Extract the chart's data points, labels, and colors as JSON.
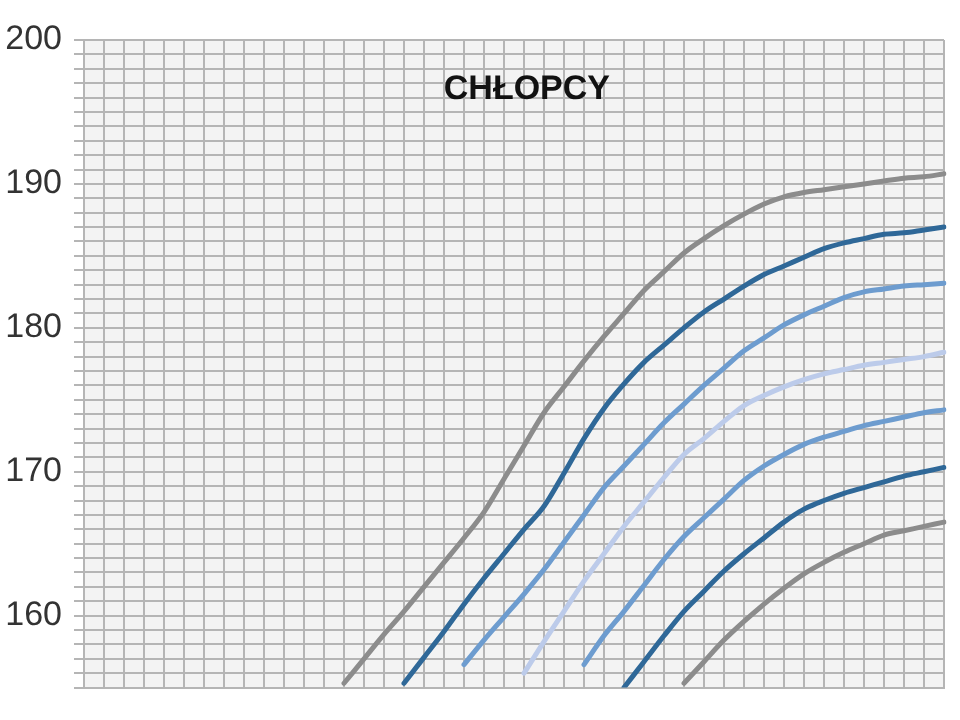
{
  "chart_data": {
    "type": "line",
    "title": "CHŁOPCY",
    "categories": [
      null,
      null,
      null,
      null,
      null,
      null,
      null,
      null,
      null,
      null,
      null,
      null,
      null,
      null,
      null,
      null,
      null,
      null,
      null,
      null,
      null,
      null,
      null,
      null,
      null,
      null,
      null,
      null,
      null,
      null,
      null,
      null,
      null,
      null,
      null,
      null,
      null,
      null,
      null,
      null,
      null,
      null,
      null,
      null
    ],
    "series": [
      {
        "color": "#8c8c8c",
        "values": [
          null,
          null,
          null,
          null,
          null,
          null,
          null,
          null,
          null,
          null,
          null,
          null,
          null,
          155.3,
          157.0,
          158.7,
          160.3,
          162.0,
          163.7,
          165.4,
          167.2,
          169.5,
          171.8,
          174.1,
          175.9,
          177.7,
          179.4,
          181.0,
          182.6,
          183.9,
          185.2,
          186.2,
          187.1,
          187.9,
          188.6,
          189.1,
          189.4,
          189.6,
          189.8,
          190.0,
          190.2,
          190.4,
          190.5,
          190.7
        ]
      },
      {
        "color": "#2f6898",
        "values": [
          null,
          null,
          null,
          null,
          null,
          null,
          null,
          null,
          null,
          null,
          null,
          null,
          null,
          null,
          null,
          null,
          155.3,
          157.1,
          158.9,
          160.8,
          162.6,
          164.3,
          166.0,
          167.6,
          169.9,
          172.3,
          174.4,
          176.1,
          177.6,
          178.8,
          180.0,
          181.1,
          182.0,
          182.9,
          183.7,
          184.3,
          184.9,
          185.5,
          185.9,
          186.2,
          186.5,
          186.6,
          186.8,
          187.0
        ]
      },
      {
        "color": "#6d9ccf",
        "values": [
          null,
          null,
          null,
          null,
          null,
          null,
          null,
          null,
          null,
          null,
          null,
          null,
          null,
          null,
          null,
          null,
          null,
          null,
          null,
          156.6,
          158.3,
          159.9,
          161.5,
          163.2,
          165.1,
          167.0,
          168.9,
          170.4,
          171.9,
          173.4,
          174.7,
          176.0,
          177.2,
          178.4,
          179.3,
          180.2,
          180.9,
          181.5,
          182.1,
          182.5,
          182.7,
          182.9,
          183.0,
          183.1
        ]
      },
      {
        "color": "#bccbea",
        "values": [
          null,
          null,
          null,
          null,
          null,
          null,
          null,
          null,
          null,
          null,
          null,
          null,
          null,
          null,
          null,
          null,
          null,
          null,
          null,
          null,
          null,
          null,
          156.0,
          158.2,
          160.3,
          162.4,
          164.3,
          166.2,
          167.9,
          169.6,
          171.2,
          172.3,
          173.5,
          174.6,
          175.3,
          175.9,
          176.4,
          176.8,
          177.1,
          177.4,
          177.6,
          177.8,
          178.0,
          178.3
        ]
      },
      {
        "color": "#6d9ccf",
        "values": [
          null,
          null,
          null,
          null,
          null,
          null,
          null,
          null,
          null,
          null,
          null,
          null,
          null,
          null,
          null,
          null,
          null,
          null,
          null,
          null,
          null,
          null,
          null,
          null,
          null,
          156.6,
          158.6,
          160.3,
          162.1,
          163.9,
          165.5,
          166.8,
          168.1,
          169.4,
          170.4,
          171.2,
          171.9,
          172.4,
          172.8,
          173.2,
          173.5,
          173.8,
          174.1,
          174.3
        ]
      },
      {
        "color": "#2f6898",
        "values": [
          null,
          null,
          null,
          null,
          null,
          null,
          null,
          null,
          null,
          null,
          null,
          null,
          null,
          null,
          null,
          null,
          null,
          null,
          null,
          null,
          null,
          null,
          null,
          null,
          null,
          null,
          null,
          155.0,
          156.8,
          158.6,
          160.3,
          161.7,
          163.1,
          164.3,
          165.4,
          166.5,
          167.4,
          168.0,
          168.5,
          168.9,
          169.3,
          169.7,
          170.0,
          170.3
        ]
      },
      {
        "color": "#8c8c8c",
        "values": [
          null,
          null,
          null,
          null,
          null,
          null,
          null,
          null,
          null,
          null,
          null,
          null,
          null,
          null,
          null,
          null,
          null,
          null,
          null,
          null,
          null,
          null,
          null,
          null,
          null,
          null,
          null,
          null,
          null,
          null,
          155.3,
          156.8,
          158.3,
          159.6,
          160.8,
          161.9,
          162.9,
          163.7,
          164.4,
          165.0,
          165.6,
          165.9,
          166.2,
          166.5
        ]
      }
    ],
    "ylim": [
      155,
      200
    ],
    "yticks": [
      {
        "value": 155,
        "label": null
      },
      {
        "value": 156,
        "label": null
      },
      {
        "value": 157,
        "label": null
      },
      {
        "value": 158,
        "label": null
      },
      {
        "value": 159,
        "label": null
      },
      160,
      {
        "value": 161,
        "label": null
      },
      {
        "value": 162,
        "label": null
      },
      {
        "value": 163,
        "label": null
      },
      {
        "value": 164,
        "label": null
      },
      {
        "value": 165,
        "label": null
      },
      {
        "value": 166,
        "label": null
      },
      {
        "value": 167,
        "label": null
      },
      {
        "value": 168,
        "label": null
      },
      {
        "value": 169,
        "label": null
      },
      170,
      {
        "value": 171,
        "label": null
      },
      {
        "value": 172,
        "label": null
      },
      {
        "value": 173,
        "label": null
      },
      {
        "value": 174,
        "label": null
      },
      {
        "value": 175,
        "label": null
      },
      {
        "value": 176,
        "label": null
      },
      {
        "value": 177,
        "label": null
      },
      {
        "value": 178,
        "label": null
      },
      {
        "value": 179,
        "label": null
      },
      180,
      {
        "value": 181,
        "label": null
      },
      {
        "value": 182,
        "label": null
      },
      {
        "value": 183,
        "label": null
      },
      {
        "value": 184,
        "label": null
      },
      {
        "value": 185,
        "label": null
      },
      {
        "value": 186,
        "label": null
      },
      {
        "value": 187,
        "label": null
      },
      {
        "value": 188,
        "label": null
      },
      {
        "value": 189,
        "label": null
      },
      190,
      {
        "value": 191,
        "label": null
      },
      {
        "value": 192,
        "label": null
      },
      {
        "value": 193,
        "label": null
      },
      {
        "value": 194,
        "label": null
      },
      {
        "value": 195,
        "label": null
      },
      {
        "value": 196,
        "label": null
      },
      {
        "value": 197,
        "label": null
      },
      {
        "value": 198,
        "label": null
      },
      {
        "value": 199,
        "label": null
      },
      200
    ],
    "grid": true,
    "legend": false,
    "tick_labels": "y",
    "marker": "none",
    "line_style": "solid"
  }
}
